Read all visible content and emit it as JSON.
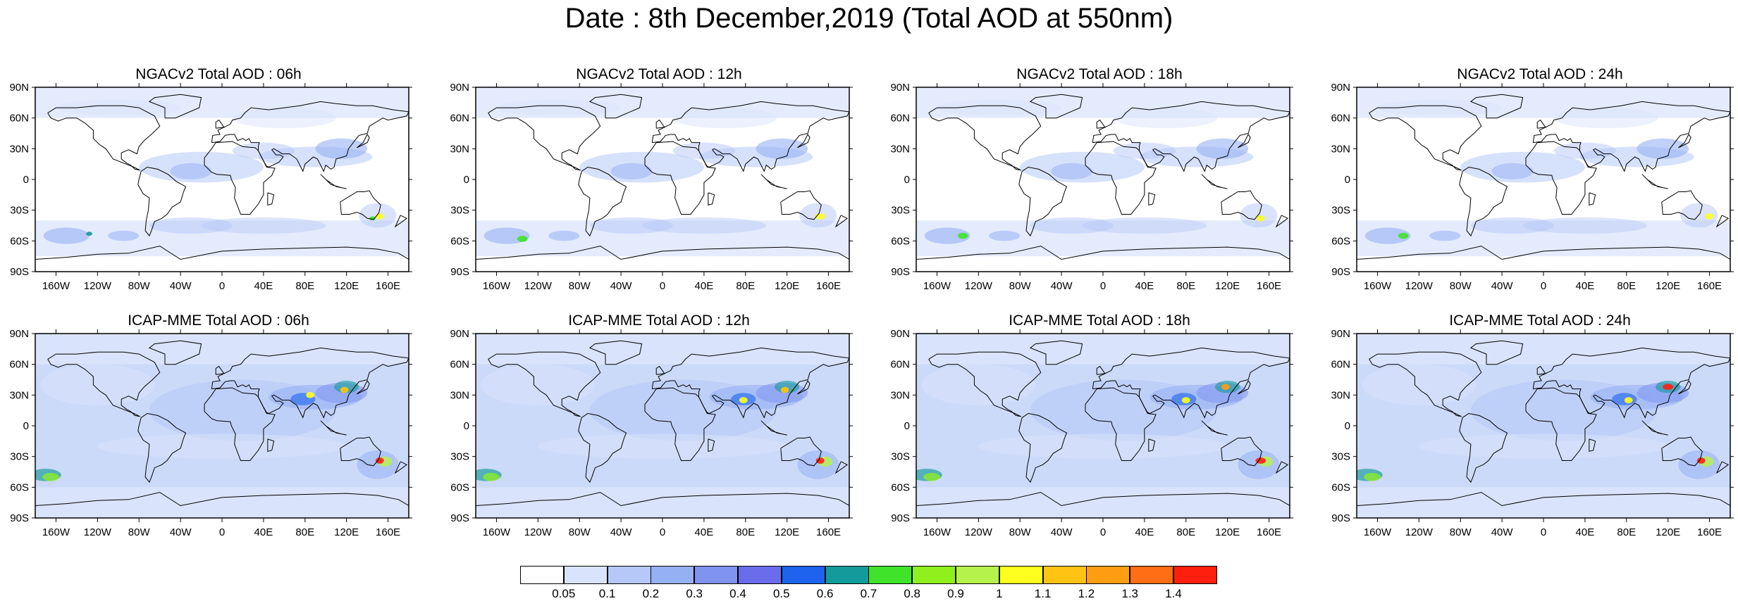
{
  "title": "Date : 8th December,2019 (Total AOD at 550nm)",
  "panels": [
    {
      "title": "NGACv2 Total AOD : 06h",
      "model": "NGACv2",
      "hour": "06h"
    },
    {
      "title": "NGACv2 Total AOD : 12h",
      "model": "NGACv2",
      "hour": "12h"
    },
    {
      "title": "NGACv2 Total AOD : 18h",
      "model": "NGACv2",
      "hour": "18h"
    },
    {
      "title": "NGACv2 Total AOD : 24h",
      "model": "NGACv2",
      "hour": "24h"
    },
    {
      "title": "ICAP-MME Total AOD : 06h",
      "model": "ICAP-MME",
      "hour": "06h"
    },
    {
      "title": "ICAP-MME Total AOD : 12h",
      "model": "ICAP-MME",
      "hour": "12h"
    },
    {
      "title": "ICAP-MME Total AOD : 18h",
      "model": "ICAP-MME",
      "hour": "18h"
    },
    {
      "title": "ICAP-MME Total AOD : 24h",
      "model": "ICAP-MME",
      "hour": "24h"
    }
  ],
  "lat_labels": [
    "90N",
    "60N",
    "30N",
    "0",
    "30S",
    "60S",
    "90S"
  ],
  "lon_labels": [
    "160W",
    "120W",
    "80W",
    "40W",
    "0",
    "40E",
    "80E",
    "120E",
    "160E"
  ],
  "colorbar": {
    "labels": [
      "0.05",
      "0.1",
      "0.2",
      "0.3",
      "0.4",
      "0.5",
      "0.6",
      "0.7",
      "0.8",
      "0.9",
      "1",
      "1.1",
      "1.2",
      "1.3",
      "1.4"
    ],
    "colors": [
      "#ffffff",
      "#d9e3fb",
      "#b5c8f7",
      "#96b0f4",
      "#7f93ef",
      "#6b6cec",
      "#1d63ee",
      "#139a9a",
      "#3ee32a",
      "#8ff01d",
      "#b5f24c",
      "#ffff1e",
      "#ffc413",
      "#ff9d12",
      "#ff6d14",
      "#ff1f0f"
    ]
  }
}
